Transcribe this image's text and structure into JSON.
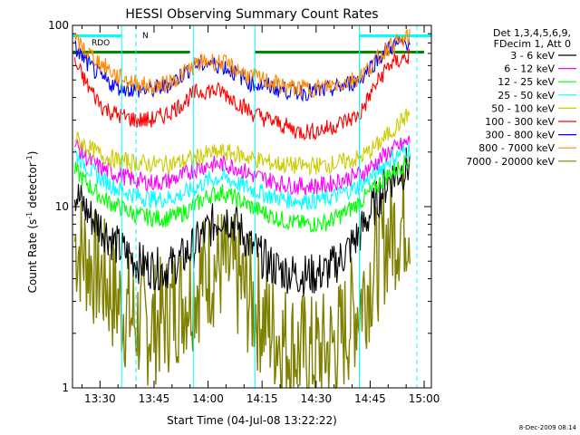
{
  "chart_data": {
    "type": "line",
    "title": "HESSI Observing Summary Count Rates",
    "xlabel": "Start Time (04-Jul-08 13:22:22)",
    "ylabel": "Count Rate (s",
    "ylabel_sup": "-1",
    "ylabel_tail": " detector",
    "ylabel_sup2": "-1",
    "ylabel_end": ")",
    "y_scale": "log",
    "ylim": [
      1,
      100
    ],
    "xlim": [
      "13:22:22",
      "15:02:00"
    ],
    "x_ticks": [
      "13:30",
      "13:45",
      "14:00",
      "14:15",
      "14:30",
      "14:45",
      "15:00"
    ],
    "y_ticks": [
      "1",
      "10",
      "100"
    ],
    "legend_header": [
      "Det 1,3,4,5,6,9,",
      "FDecim 1, Att 0"
    ],
    "legend_position": "right",
    "footer_date": "8-Dec-2009 08:14",
    "flag_labels": [
      "RDO",
      "N"
    ],
    "night_intervals": [
      [
        "13:20",
        "13:36"
      ],
      [
        "14:42",
        "15:02"
      ]
    ],
    "saa_intervals": [
      [
        "13:20",
        "13:55"
      ],
      [
        "14:13",
        "15:00"
      ]
    ],
    "vertical_markers": {
      "solid": [
        "13:36",
        "13:56",
        "14:13",
        "14:42"
      ],
      "dashed": [
        "13:40",
        "14:58"
      ]
    },
    "series": [
      {
        "name": "3 - 6 keV",
        "color": "#000000",
        "values": [
          12,
          9,
          7.5,
          6,
          5,
          4.6,
          4.5,
          5,
          6,
          7.5,
          9,
          8,
          6,
          4.8,
          4.4,
          4.2,
          4.2,
          4.4,
          5.2,
          7,
          10,
          14,
          17
        ]
      },
      {
        "name": "6 - 12 keV",
        "color": "#ff00ff",
        "values": [
          22,
          18,
          16,
          15,
          14,
          13.6,
          13.7,
          14.5,
          16,
          17,
          17.2,
          16.5,
          15,
          14,
          13.3,
          13,
          13,
          13.2,
          14,
          15,
          17,
          20,
          23
        ]
      },
      {
        "name": "12 - 25 keV",
        "color": "#00ff00",
        "values": [
          16,
          13,
          11,
          10,
          9,
          8.7,
          8.6,
          9,
          10,
          11.5,
          12,
          11,
          10,
          9,
          8.4,
          8.1,
          8,
          8.2,
          9,
          10.5,
          12.5,
          15,
          18
        ]
      },
      {
        "name": "25 - 50 keV",
        "color": "#00ffff",
        "values": [
          20,
          16,
          14,
          12.5,
          11.5,
          11,
          11,
          11.5,
          12.5,
          14,
          14.5,
          13.5,
          12.5,
          11.5,
          11,
          10.8,
          10.8,
          11,
          11.8,
          13,
          15,
          18,
          21
        ]
      },
      {
        "name": "50 - 100 keV",
        "color": "#cccc00",
        "values": [
          24,
          21,
          19,
          18,
          17.5,
          17.2,
          17.2,
          17.5,
          18.5,
          19.5,
          20,
          19.5,
          18.5,
          17.5,
          17,
          16.8,
          16.8,
          17,
          17.5,
          18.5,
          21,
          25,
          33
        ]
      },
      {
        "name": "100 - 300 keV",
        "color": "#ff0000",
        "values": [
          62,
          45,
          35,
          32,
          30,
          30,
          32,
          36,
          42,
          44,
          43,
          38,
          33,
          30,
          28,
          26,
          26,
          27,
          29,
          32,
          45,
          60,
          68
        ]
      },
      {
        "name": "300 - 800 keV",
        "color": "#0000ff",
        "values": [
          75,
          60,
          50,
          46,
          44,
          44,
          46,
          52,
          60,
          62,
          60,
          54,
          48,
          46,
          44,
          43,
          43,
          44,
          46,
          50,
          62,
          75,
          82
        ]
      },
      {
        "name": "800 - 7000 keV",
        "color": "#ff8800",
        "values": [
          82,
          70,
          60,
          52,
          48,
          46,
          47,
          52,
          60,
          64,
          62,
          57,
          52,
          49,
          46,
          45,
          45,
          46,
          48,
          52,
          62,
          76,
          86
        ]
      },
      {
        "name": "7000 - 20000 keV",
        "color": "#808000",
        "values": [
          6.5,
          5,
          4,
          3,
          2.3,
          2.2,
          2.5,
          3,
          3.6,
          4.5,
          4.8,
          4,
          3,
          2.2,
          1.8,
          1.6,
          1.5,
          1.6,
          1.9,
          3,
          4.5,
          7,
          9
        ]
      }
    ],
    "series_x": [
      "13:23",
      "13:27",
      "13:31",
      "13:35",
      "13:40",
      "13:44",
      "13:48",
      "13:52",
      "13:56",
      "14:00",
      "14:04",
      "14:08",
      "14:12",
      "14:17",
      "14:21",
      "14:25",
      "14:29",
      "14:33",
      "14:37",
      "14:42",
      "14:46",
      "14:50",
      "14:56"
    ]
  }
}
